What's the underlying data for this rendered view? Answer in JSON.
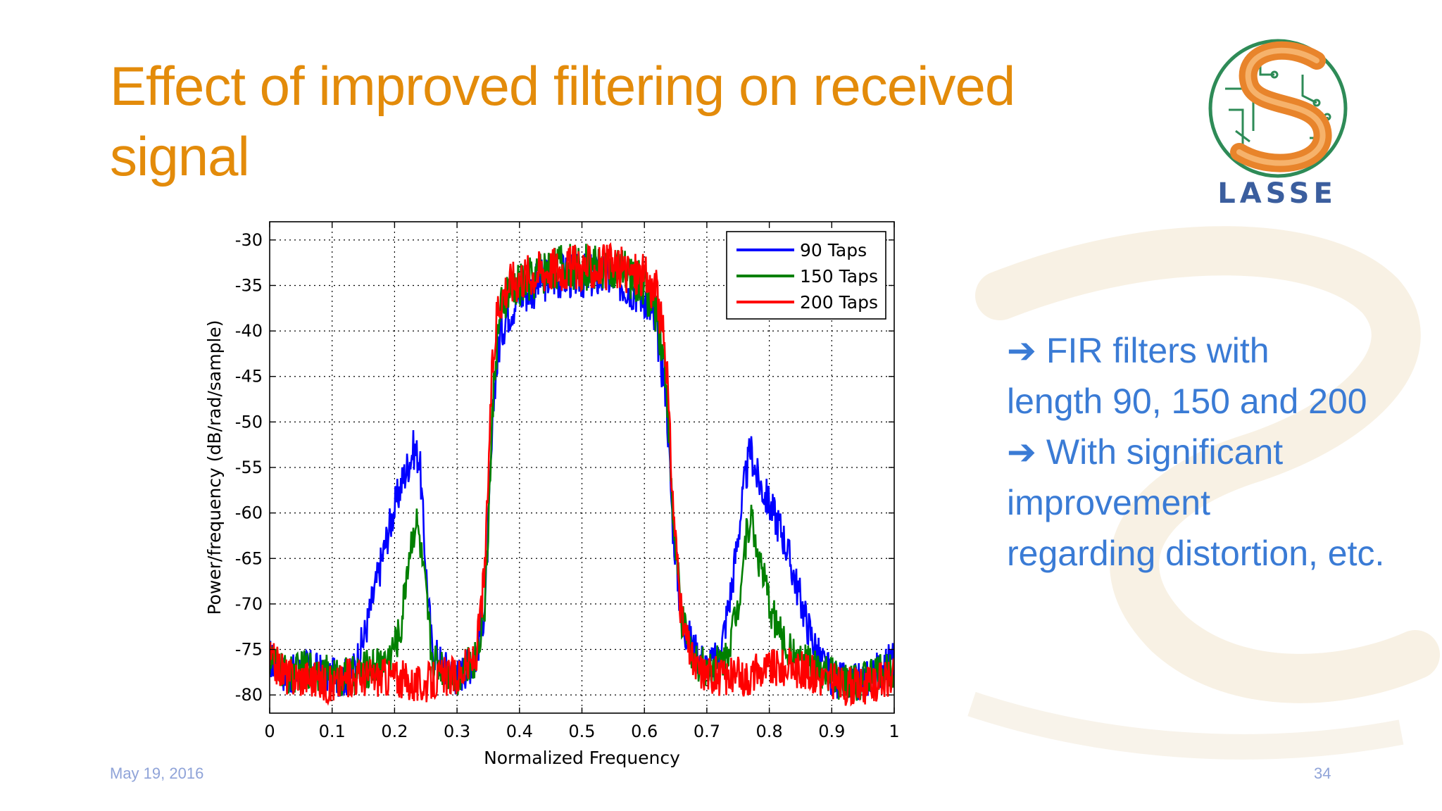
{
  "slide": {
    "title": "Effect of improved filtering on received signal",
    "bullets": [
      {
        "arrow": "➔",
        "text": "FIR filters with"
      },
      {
        "arrow": "",
        "text": "length 90, 150 and 200"
      },
      {
        "arrow": "➔",
        "text": "With significant"
      },
      {
        "arrow": "",
        "text": "improvement"
      },
      {
        "arrow": "",
        "text": "regarding distortion, etc."
      }
    ],
    "date": "May 19, 2016",
    "page_number": "34",
    "logo_text": "LASSE",
    "colors": {
      "title": "#E38B0A",
      "bullets": "#3A7BD5",
      "footer": "#8FA3D8"
    }
  },
  "chart_data": {
    "type": "line",
    "title": "",
    "xlabel": "Normalized Frequency",
    "ylabel": "Power/frequency (dB/rad/sample)",
    "xlim": [
      0,
      1
    ],
    "ylim": [
      -82,
      -28
    ],
    "xticks": [
      0,
      0.1,
      0.2,
      0.3,
      0.4,
      0.5,
      0.6,
      0.7,
      0.8,
      0.9,
      1
    ],
    "xtick_labels": [
      "0",
      "0.1",
      "0.2",
      "0.3",
      "0.4",
      "0.5",
      "0.6",
      "0.7",
      "0.8",
      "0.9",
      "1"
    ],
    "yticks": [
      -30,
      -35,
      -40,
      -45,
      -50,
      -55,
      -60,
      -65,
      -70,
      -75,
      -80
    ],
    "ytick_labels": [
      "-30",
      "-35",
      "-40",
      "-45",
      "-50",
      "-55",
      "-60",
      "-65",
      "-70",
      "-75",
      "-80"
    ],
    "grid": true,
    "legend_position": "top-right",
    "series": [
      {
        "name": "90 Taps",
        "color": "#0000FF",
        "x": [
          0,
          0.03,
          0.06,
          0.1,
          0.13,
          0.15,
          0.17,
          0.19,
          0.21,
          0.23,
          0.24,
          0.25,
          0.26,
          0.28,
          0.3,
          0.33,
          0.345,
          0.36,
          0.37,
          0.38,
          0.4,
          0.45,
          0.5,
          0.55,
          0.6,
          0.62,
          0.635,
          0.645,
          0.66,
          0.68,
          0.7,
          0.72,
          0.74,
          0.76,
          0.77,
          0.78,
          0.8,
          0.82,
          0.84,
          0.86,
          0.88,
          0.9,
          0.93,
          0.96,
          1
        ],
        "y": [
          -76,
          -78,
          -77,
          -78,
          -78,
          -74,
          -68,
          -62,
          -57,
          -53,
          -54,
          -66,
          -75,
          -77,
          -78,
          -76,
          -70,
          -46,
          -40,
          -38,
          -36,
          -34,
          -34,
          -34,
          -36,
          -40,
          -47,
          -61,
          -72,
          -75,
          -77,
          -76,
          -68,
          -57,
          -53,
          -56,
          -59,
          -62,
          -67,
          -72,
          -76,
          -78,
          -79,
          -78,
          -76
        ]
      },
      {
        "name": "150 Taps",
        "color": "#008000",
        "x": [
          0,
          0.03,
          0.06,
          0.1,
          0.13,
          0.16,
          0.19,
          0.21,
          0.22,
          0.23,
          0.235,
          0.24,
          0.25,
          0.26,
          0.28,
          0.3,
          0.33,
          0.345,
          0.36,
          0.37,
          0.38,
          0.4,
          0.45,
          0.5,
          0.55,
          0.6,
          0.62,
          0.635,
          0.645,
          0.66,
          0.68,
          0.7,
          0.73,
          0.75,
          0.76,
          0.77,
          0.78,
          0.8,
          0.82,
          0.84,
          0.87,
          0.9,
          0.93,
          0.96,
          1
        ],
        "y": [
          -76,
          -78,
          -77,
          -78,
          -78,
          -77,
          -76,
          -73,
          -66,
          -62,
          -61,
          -63,
          -69,
          -76,
          -77,
          -78,
          -76,
          -70,
          -44,
          -38,
          -36,
          -35,
          -33,
          -33,
          -33,
          -35,
          -38,
          -45,
          -60,
          -72,
          -76,
          -77,
          -76,
          -70,
          -64,
          -60,
          -64,
          -70,
          -74,
          -76,
          -77,
          -78,
          -79,
          -78,
          -77
        ]
      },
      {
        "name": "200 Taps",
        "color": "#FF0000",
        "x": [
          0,
          0.03,
          0.06,
          0.1,
          0.13,
          0.16,
          0.2,
          0.24,
          0.28,
          0.3,
          0.33,
          0.345,
          0.355,
          0.365,
          0.38,
          0.4,
          0.45,
          0.5,
          0.55,
          0.6,
          0.62,
          0.635,
          0.645,
          0.66,
          0.68,
          0.72,
          0.76,
          0.8,
          0.84,
          0.88,
          0.92,
          0.96,
          1
        ],
        "y": [
          -76,
          -78,
          -78,
          -79,
          -78,
          -78,
          -78,
          -79,
          -78,
          -78,
          -76,
          -66,
          -46,
          -37,
          -35,
          -34,
          -33,
          -33,
          -33,
          -34,
          -36,
          -43,
          -58,
          -72,
          -77,
          -78,
          -78,
          -77,
          -77,
          -78,
          -79,
          -79,
          -78
        ]
      }
    ]
  }
}
